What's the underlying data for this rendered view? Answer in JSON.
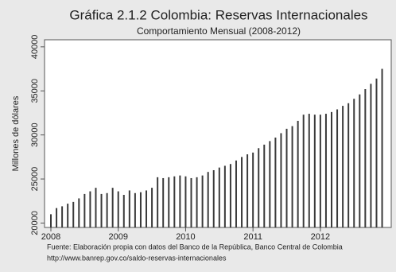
{
  "chart_data": {
    "type": "bar",
    "title": "Gráfica 2.1.2 Colombia: Reservas Internacionales",
    "subtitle": "Comportamiento Mensual (2008-2012)",
    "y_label": "Millones de dólares",
    "source": [
      "Fuente: Elaboración propia con datos del Banco de la República, Banco Central de Colombia",
      "http://www.banrep.gov.co/saldo-reservas-internacionales"
    ],
    "categories": [
      "2008",
      null,
      null,
      null,
      null,
      null,
      null,
      null,
      null,
      null,
      null,
      null,
      "2009",
      null,
      null,
      null,
      null,
      null,
      null,
      null,
      null,
      null,
      null,
      null,
      "2010",
      null,
      null,
      null,
      null,
      null,
      null,
      null,
      null,
      null,
      null,
      null,
      "2011",
      null,
      null,
      null,
      null,
      null,
      null,
      null,
      null,
      null,
      null,
      null,
      "2012",
      null,
      null,
      null,
      null,
      null,
      null,
      null,
      null,
      null,
      null,
      null
    ],
    "values": [
      21000,
      21700,
      21900,
      22200,
      22400,
      22800,
      23300,
      23600,
      24000,
      23300,
      23400,
      24000,
      23600,
      23200,
      23700,
      23400,
      23500,
      23700,
      24000,
      25200,
      25100,
      25200,
      25300,
      25400,
      25300,
      25100,
      25200,
      25400,
      25800,
      26000,
      26300,
      26500,
      26700,
      27100,
      27500,
      27800,
      28000,
      28500,
      28900,
      29300,
      29700,
      30200,
      30700,
      31000,
      31600,
      32300,
      32400,
      32300,
      32300,
      32400,
      32600,
      32900,
      33300,
      33600,
      34100,
      34600,
      35200,
      35800,
      36400,
      37500
    ],
    "color": "#3a3a3a",
    "ylim": [
      19500,
      40800
    ],
    "yticks": [
      20000,
      25000,
      30000,
      35000,
      40000
    ]
  }
}
